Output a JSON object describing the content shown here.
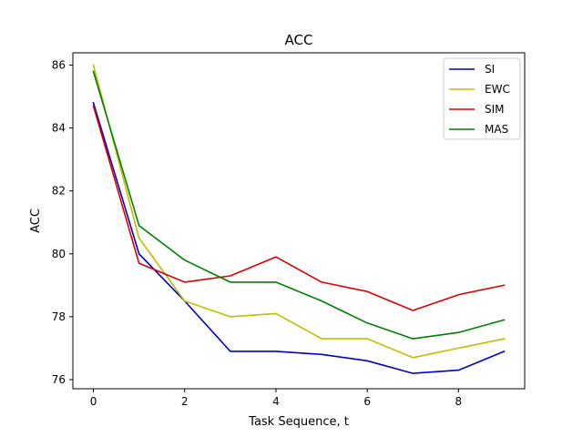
{
  "chart_data": {
    "type": "line",
    "title": "ACC",
    "xlabel": "Task Sequence, t",
    "ylabel": "ACC",
    "x": [
      0,
      1,
      2,
      3,
      4,
      5,
      6,
      7,
      8,
      9
    ],
    "xlim": [
      -0.45,
      9.45
    ],
    "ylim": [
      75.71,
      86.39
    ],
    "xticks": [
      0,
      2,
      4,
      6,
      8
    ],
    "yticks": [
      76,
      78,
      80,
      82,
      84,
      86
    ],
    "xtick_labels": [
      "0",
      "2",
      "4",
      "6",
      "8"
    ],
    "ytick_labels": [
      "76",
      "78",
      "80",
      "82",
      "84",
      "86"
    ],
    "grid": false,
    "legend_position": "top-right",
    "series": [
      {
        "name": "SI",
        "color": "#0000cc",
        "values": [
          84.8,
          80.0,
          78.5,
          76.9,
          76.9,
          76.8,
          76.6,
          76.2,
          76.3,
          76.9
        ]
      },
      {
        "name": "EWC",
        "color": "#bfbf00",
        "values": [
          86.0,
          80.5,
          78.5,
          78.0,
          78.1,
          77.3,
          77.3,
          76.7,
          77.0,
          77.3
        ]
      },
      {
        "name": "SIM",
        "color": "#dd0000",
        "values": [
          84.7,
          79.7,
          79.1,
          79.3,
          79.9,
          79.1,
          78.8,
          78.2,
          78.7,
          79.0
        ]
      },
      {
        "name": "MAS",
        "color": "#008000",
        "values": [
          85.8,
          80.9,
          79.8,
          79.1,
          79.1,
          78.5,
          77.8,
          77.3,
          77.5,
          77.9
        ]
      }
    ]
  }
}
